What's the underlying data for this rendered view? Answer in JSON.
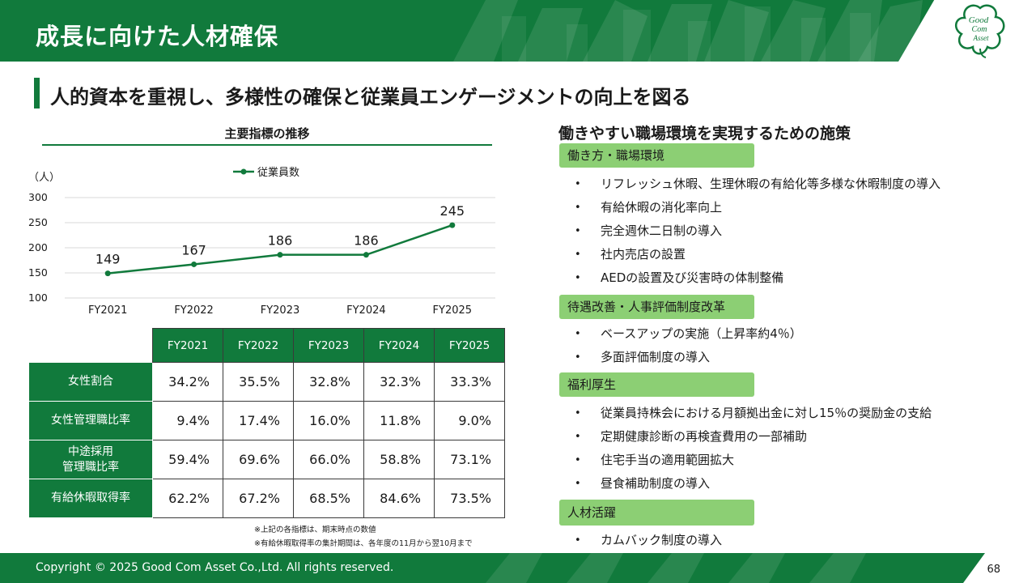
{
  "header": {
    "title": "成長に向けた人材確保",
    "logo_lines": [
      "Good",
      "Com",
      "Asset"
    ]
  },
  "subtitle": "人的資本を重視し、多様性の確保と従業員エンゲージメントの向上を図る",
  "chart_data": {
    "type": "line",
    "title": "主要指標の推移",
    "ylabel": "（人）",
    "categories": [
      "FY2021",
      "FY2022",
      "FY2023",
      "FY2024",
      "FY2025"
    ],
    "series": [
      {
        "name": "従業員数",
        "values": [
          149,
          167,
          186,
          186,
          245
        ]
      }
    ],
    "ylim": [
      100,
      300
    ],
    "yticks": [
      300,
      250,
      200,
      150,
      100
    ],
    "grid": true,
    "legend": "top-center",
    "colors": {
      "line": "#117a3c",
      "grid": "#d9d9d9"
    }
  },
  "table": {
    "years": [
      "FY2021",
      "FY2022",
      "FY2023",
      "FY2024",
      "FY2025"
    ],
    "rows": [
      {
        "label_lines": [
          "女性割合"
        ],
        "values": [
          "34.2%",
          "35.5%",
          "32.8%",
          "32.3%",
          "33.3%"
        ]
      },
      {
        "label_lines": [
          "女性管理職比率"
        ],
        "values": [
          "9.4%",
          "17.4%",
          "16.0%",
          "11.8%",
          "9.0%"
        ]
      },
      {
        "label_lines": [
          "中途採用",
          "管理職比率"
        ],
        "values": [
          "59.4%",
          "69.6%",
          "66.0%",
          "58.8%",
          "73.1%"
        ]
      },
      {
        "label_lines": [
          "有給休暇取得率"
        ],
        "values": [
          "62.2%",
          "67.2%",
          "68.5%",
          "84.6%",
          "73.5%"
        ]
      }
    ]
  },
  "notes": [
    "※上記の各指標は、期末時点の数値",
    "※有給休暇取得率の集計期間は、各年度の11月から翌10月まで"
  ],
  "measures": {
    "title": "働きやすい職場環境を実現するための施策",
    "sections": [
      {
        "head": "働き方・職場環境",
        "items": [
          "リフレッシュ休暇、生理休暇の有給化等多様な休暇制度の導入",
          "有給休暇の消化率向上",
          "完全週休二日制の導入",
          "社内売店の設置",
          "AEDの設置及び災害時の体制整備"
        ]
      },
      {
        "head": "待遇改善・人事評価制度改革",
        "items": [
          "ベースアップの実施（上昇率約4％）",
          "多面評価制度の導入"
        ]
      },
      {
        "head": "福利厚生",
        "items": [
          "従業員持株会における月額拠出金に対し15％の奨励金の支給",
          "定期健康診断の再検査費用の一部補助",
          "住宅手当の適用範囲拡大",
          "昼食補助制度の導入"
        ]
      },
      {
        "head": "人材活躍",
        "items": [
          "カムバック制度の導入"
        ]
      }
    ]
  },
  "footer": {
    "copyright": "Copyright © 2025 Good Com Asset Co.,Ltd. All rights reserved.",
    "page": "68"
  },
  "colors": {
    "brand_green": "#117a3c",
    "section_green": "#8ccf74"
  }
}
